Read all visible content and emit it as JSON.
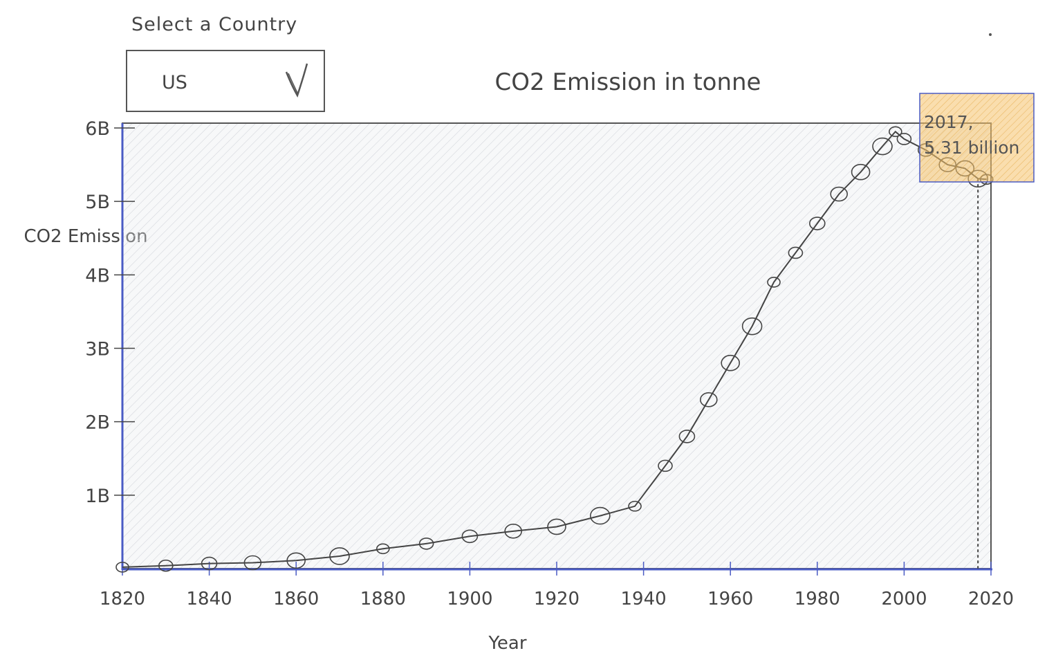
{
  "selector": {
    "label": "Select a Country",
    "value": "US",
    "chevron_icon": "chevron-down-icon"
  },
  "chart_data": {
    "type": "line",
    "title": "CO2 Emission in tonne",
    "xlabel": "Year",
    "ylabel": "CO2 Emission",
    "xlim": [
      1820,
      2020
    ],
    "ylim": [
      0,
      6000000000
    ],
    "x_ticks": [
      1820,
      1840,
      1860,
      1880,
      1900,
      1920,
      1940,
      1960,
      1980,
      2000,
      2020
    ],
    "y_ticks": [
      {
        "value": 1000000000,
        "label": "1B"
      },
      {
        "value": 2000000000,
        "label": "2B"
      },
      {
        "value": 3000000000,
        "label": "3B"
      },
      {
        "value": 4000000000,
        "label": "4B"
      },
      {
        "value": 5000000000,
        "label": "5B"
      },
      {
        "value": 6000000000,
        "label": "6B"
      }
    ],
    "grid": false,
    "series": [
      {
        "x": [
          1820,
          1830,
          1840,
          1850,
          1860,
          1870,
          1880,
          1890,
          1900,
          1910,
          1920,
          1930,
          1938,
          1945,
          1950,
          1955,
          1960,
          1965,
          1970,
          1975,
          1980,
          1985,
          1990,
          1995,
          1998,
          2000,
          2005,
          2010,
          2014,
          2017,
          2019
        ],
        "y": [
          20000000,
          40000000,
          70000000,
          80000000,
          110000000,
          170000000,
          270000000,
          340000000,
          440000000,
          510000000,
          570000000,
          720000000,
          850000000,
          1400000000,
          1800000000,
          2300000000,
          2800000000,
          3300000000,
          3900000000,
          4300000000,
          4700000000,
          5100000000,
          5400000000,
          5750000000,
          5950000000,
          5850000000,
          5700000000,
          5500000000,
          5450000000,
          5310000000,
          5300000000
        ],
        "color": "#444444"
      }
    ],
    "highlight": {
      "x": 2017,
      "y": 5310000000,
      "label_year": "2017,",
      "label_value": "5.31 billion",
      "color": "#f5c26b"
    },
    "colors": {
      "axis": "#4a5bc4",
      "plot_fill": "#e9ebee",
      "frame": "#555555"
    }
  }
}
